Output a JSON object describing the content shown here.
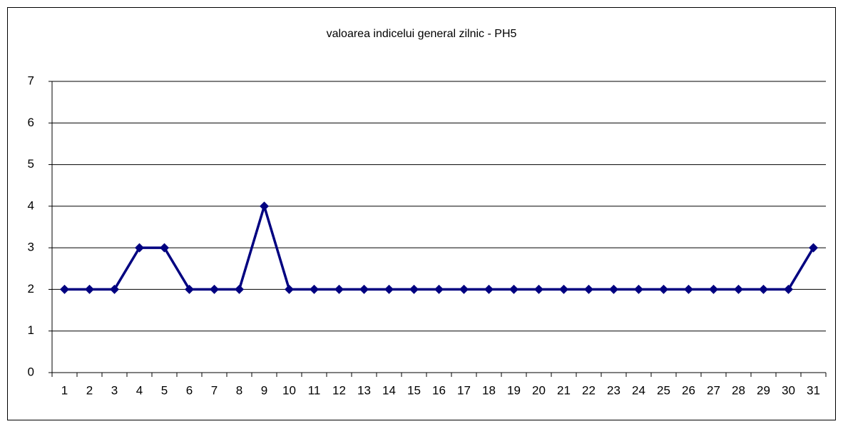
{
  "chart_data": {
    "type": "line",
    "title": "valoarea indicelui general zilnic - PH5",
    "categories": [
      "1",
      "2",
      "3",
      "4",
      "5",
      "6",
      "7",
      "8",
      "9",
      "10",
      "11",
      "12",
      "13",
      "14",
      "15",
      "16",
      "17",
      "18",
      "19",
      "20",
      "21",
      "22",
      "23",
      "24",
      "25",
      "26",
      "27",
      "28",
      "29",
      "30",
      "31"
    ],
    "series": [
      {
        "name": "PH5",
        "color": "#000080",
        "values": [
          2,
          2,
          2,
          3,
          3,
          2,
          2,
          2,
          4,
          2,
          2,
          2,
          2,
          2,
          2,
          2,
          2,
          2,
          2,
          2,
          2,
          2,
          2,
          2,
          2,
          2,
          2,
          2,
          2,
          2,
          3
        ]
      }
    ],
    "ylim": [
      0,
      7
    ],
    "yticks": [
      0,
      1,
      2,
      3,
      4,
      5,
      6,
      7
    ],
    "grid": true
  }
}
